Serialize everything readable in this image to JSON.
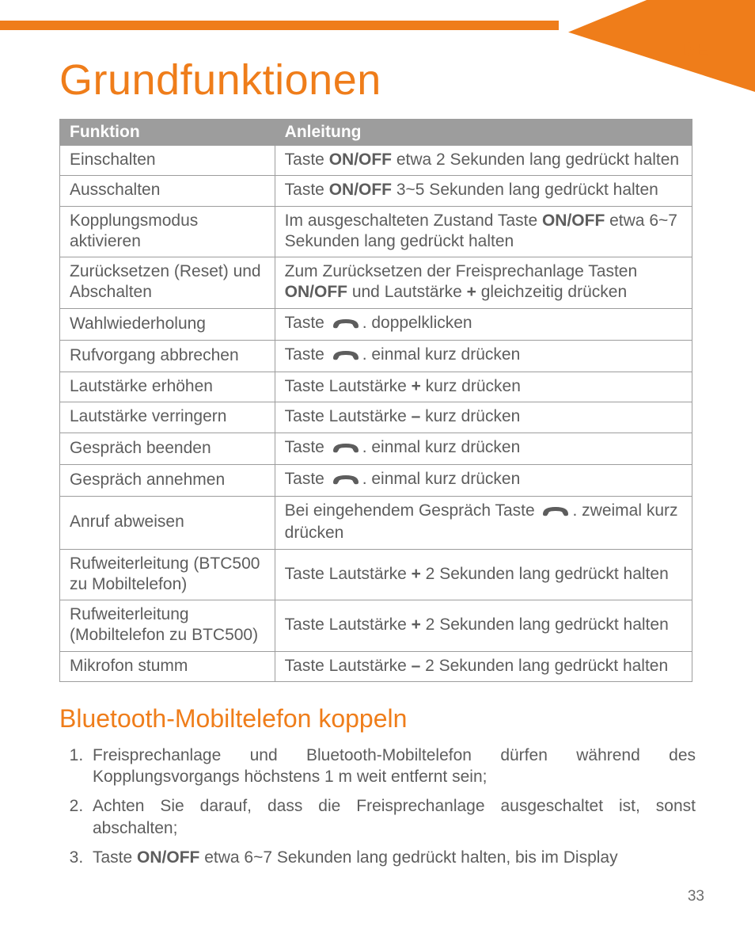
{
  "language_badge": "DE",
  "title": "Grundfunktionen",
  "table": {
    "columns": [
      "Funktion",
      "Anleitung"
    ],
    "rows": [
      {
        "f": "Einschalten",
        "a": [
          "Taste ",
          {
            "b": "ON/OFF"
          },
          " etwa 2 Sekunden lang gedrückt halten"
        ]
      },
      {
        "f": "Ausschalten",
        "a": [
          "Taste ",
          {
            "b": "ON/OFF"
          },
          " 3~5 Sekunden lang gedrückt halten"
        ]
      },
      {
        "f": "Kopplungsmodus aktivieren",
        "a": [
          "Im ausgeschalteten Zustand Taste ",
          {
            "b": "ON/OFF"
          },
          " etwa 6~7 Sekunden lang gedrückt halten"
        ]
      },
      {
        "f": "Zurücksetzen (Reset) und Abschalten",
        "a": [
          "Zum Zurücksetzen der Freisprechanlage Tasten ",
          {
            "b": "ON/OFF"
          },
          " und Lautstärke ",
          {
            "b": "+"
          },
          " gleichzeitig drücken"
        ]
      },
      {
        "f": "Wahlwiederholung",
        "a": [
          "Taste ",
          {
            "icon": "phone"
          },
          ". doppelklicken"
        ]
      },
      {
        "f": "Rufvorgang abbrechen",
        "a": [
          "Taste ",
          {
            "icon": "phone"
          },
          ". einmal kurz drücken"
        ]
      },
      {
        "f": "Lautstärke erhöhen",
        "a": [
          "Taste Lautstärke ",
          {
            "b": "+"
          },
          " kurz drücken"
        ]
      },
      {
        "f": "Lautstärke verringern",
        "a": [
          "Taste Lautstärke ",
          {
            "b": "–"
          },
          " kurz drücken"
        ]
      },
      {
        "f": "Gespräch beenden",
        "a": [
          "Taste ",
          {
            "icon": "phone"
          },
          ". einmal kurz drücken"
        ]
      },
      {
        "f": "Gespräch annehmen",
        "a": [
          "Taste ",
          {
            "icon": "phone"
          },
          ". einmal kurz drücken"
        ]
      },
      {
        "f": "Anruf abweisen",
        "a": [
          "Bei eingehendem Gespräch Taste ",
          {
            "icon": "phone"
          },
          ". zweimal kurz drücken"
        ]
      },
      {
        "f": "Rufweiterleitung (BTC500 zu Mobiltelefon)",
        "a": [
          "Taste Lautstärke ",
          {
            "b": "+"
          },
          " 2 Sekunden lang gedrückt halten"
        ]
      },
      {
        "f": "Rufweiterleitung (Mobiltelefon zu BTC500)",
        "a": [
          "Taste Lautstärke ",
          {
            "b": "+"
          },
          " 2 Sekunden lang gedrückt halten"
        ]
      },
      {
        "f": "Mikrofon stumm",
        "a": [
          "Taste Lautstärke ",
          {
            "b": "–"
          },
          " 2 Sekunden lang gedrückt halten"
        ]
      }
    ]
  },
  "subtitle": "Bluetooth-Mobiltelefon koppeln",
  "steps": [
    [
      "Freisprechanlage und Bluetooth-Mobiltelefon dürfen während des Kopplungsvorgangs höchstens 1 m weit entfernt sein;"
    ],
    [
      "Achten Sie darauf, dass die Freisprechanlage ausgeschaltet ist, sonst abschalten;"
    ],
    [
      "Taste ",
      {
        "b": "ON/OFF"
      },
      " etwa 6~7 Sekunden lang gedrückt halten, bis im Display"
    ]
  ],
  "page_number": "33",
  "colors": {
    "accent": "#ef7d1a",
    "header_bg": "#9d9d9d",
    "text": "#5d5d5d",
    "border": "#9d9d9d",
    "background": "#ffffff"
  }
}
